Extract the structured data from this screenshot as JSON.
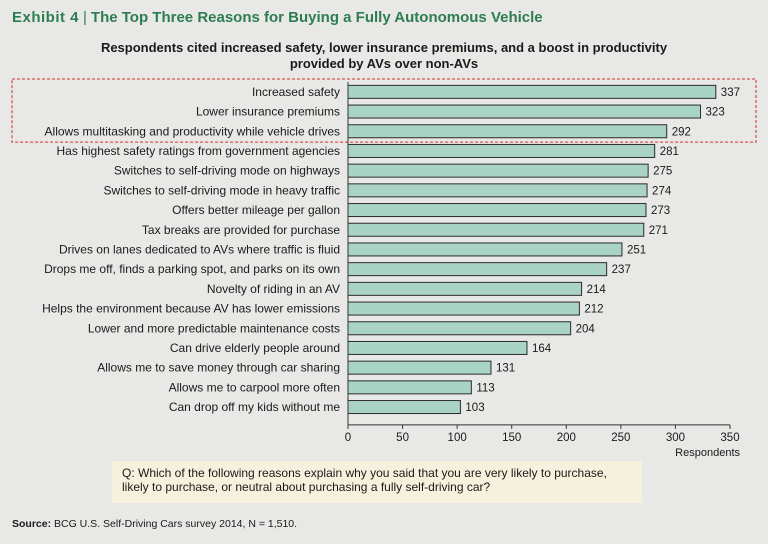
{
  "header": {
    "exhibit": "Exhibit 4",
    "title": "The Top Three Reasons for Buying a Fully Autonomous Vehicle"
  },
  "subtitle": {
    "line1": "Respondents cited increased safety, lower insurance premiums, and a boost in productivity",
    "line2": "provided by AVs over non-AVs"
  },
  "question": {
    "line1": "Q: Which of the following reasons explain why you said that you are very likely to purchase,",
    "line2": "likely to purchase, or neutral about purchasing a fully self-driving car?"
  },
  "source": {
    "label": "Source:",
    "text": "BCG U.S. Self-Driving Cars survey 2014, N = 1,510."
  },
  "colors": {
    "bar_fill": "#a9d3c5",
    "bar_stroke": "#2b2b2b",
    "highlight_border": "#d9534f",
    "header": "#2e7d52"
  },
  "chart_data": {
    "type": "bar",
    "orientation": "horizontal",
    "title": "Respondents cited increased safety, lower insurance premiums, and a boost in productivity provided by AVs over non-AVs",
    "xlabel": "Respondents",
    "ylabel": "",
    "xlim": [
      0,
      350
    ],
    "xticks": [
      0,
      50,
      100,
      150,
      200,
      250,
      300,
      350
    ],
    "highlighted_top_n": 3,
    "categories": [
      "Increased safety",
      "Lower insurance premiums",
      "Allows multitasking and productivity while vehicle drives",
      "Has highest safety ratings from government agencies",
      "Switches to self-driving mode on highways",
      "Switches to self-driving mode in heavy traffic",
      "Offers better mileage per gallon",
      "Tax breaks are provided for purchase",
      "Drives on lanes dedicated to AVs where traffic is fluid",
      "Drops me off, finds a parking spot, and parks on its own",
      "Novelty of riding in an AV",
      "Helps the environment because AV has lower emissions",
      "Lower and more predictable maintenance costs",
      "Can drive elderly people around",
      "Allows me to save money through car sharing",
      "Allows me to carpool more often",
      "Can drop off my kids without me"
    ],
    "values": [
      337,
      323,
      292,
      281,
      275,
      274,
      273,
      271,
      251,
      237,
      214,
      212,
      204,
      164,
      131,
      113,
      103
    ]
  }
}
